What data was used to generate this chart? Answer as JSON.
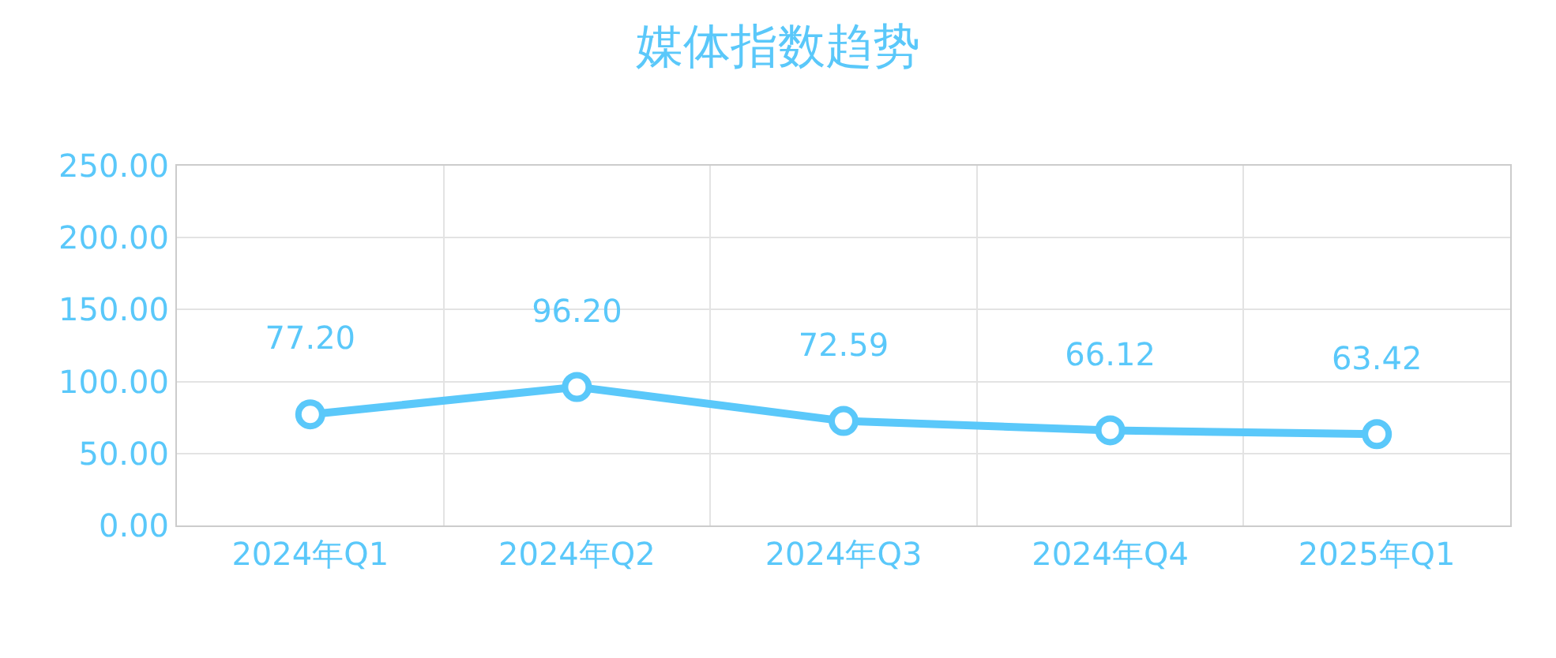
{
  "chart_data": {
    "type": "line",
    "title": "媒体指数趋势",
    "categories": [
      "2024年Q1",
      "2024年Q2",
      "2024年Q3",
      "2024年Q4",
      "2025年Q1"
    ],
    "series": [
      {
        "color": "#5ac8fa",
        "values": [
          77.2,
          96.2,
          72.59,
          66.12,
          63.42
        ],
        "value_labels": [
          "77.20",
          "96.20",
          "72.59",
          "66.12",
          "63.42"
        ]
      }
    ],
    "ylim": [
      0,
      250
    ],
    "yticks": [
      {
        "value": 0,
        "label": "0.00"
      },
      {
        "value": 50,
        "label": "50.00"
      },
      {
        "value": 100,
        "label": "100.00"
      },
      {
        "value": 150,
        "label": "150.00"
      },
      {
        "value": 200,
        "label": "200.00"
      },
      {
        "value": 250,
        "label": "250.00"
      }
    ],
    "grid": true,
    "marker": "circle",
    "line_style": "solid"
  }
}
